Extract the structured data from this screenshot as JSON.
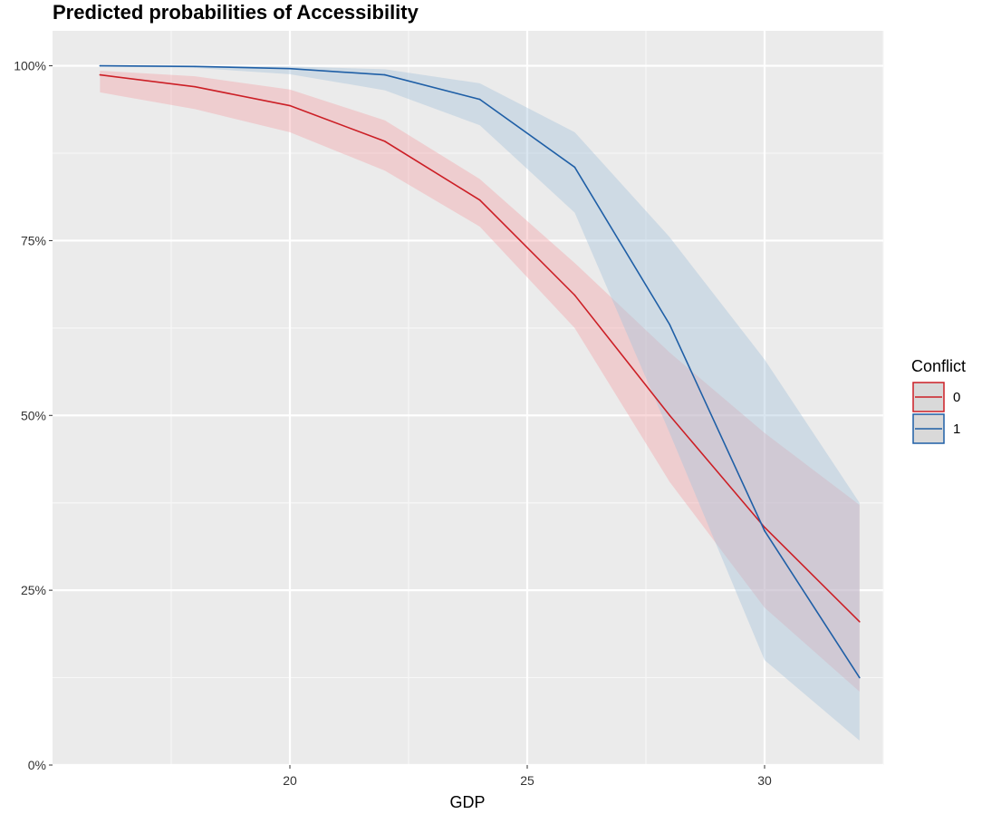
{
  "chart_data": {
    "type": "line",
    "title": "Predicted probabilities of Accessibility",
    "xlabel": "GDP",
    "ylabel": "",
    "xlim": [
      15,
      32.5
    ],
    "ylim": [
      0,
      1.05
    ],
    "x_ticks": [
      20,
      25,
      30
    ],
    "x_tick_labels": [
      "20",
      "25",
      "30"
    ],
    "y_ticks": [
      0,
      0.25,
      0.5,
      0.75,
      1.0
    ],
    "y_tick_labels": [
      "0%",
      "25%",
      "50%",
      "75%",
      "100%"
    ],
    "grid": true,
    "legend": {
      "title": "Conflict",
      "position": "right"
    },
    "series": [
      {
        "name": "0",
        "color": "#cc1f26",
        "band_color": "#f4a5a9",
        "x": [
          16,
          18,
          20,
          22,
          24,
          26,
          28,
          30,
          32
        ],
        "y": [
          0.987,
          0.97,
          0.943,
          0.892,
          0.808,
          0.672,
          0.5,
          0.34,
          0.205
        ],
        "lower": [
          0.962,
          0.938,
          0.905,
          0.85,
          0.77,
          0.625,
          0.405,
          0.225,
          0.105
        ],
        "upper": [
          0.993,
          0.985,
          0.966,
          0.922,
          0.838,
          0.718,
          0.59,
          0.475,
          0.372
        ]
      },
      {
        "name": "1",
        "color": "#1f5fa6",
        "band_color": "#a8c3dc",
        "x": [
          16,
          18,
          20,
          22,
          24,
          26,
          28,
          30,
          32
        ],
        "y": [
          1.0,
          0.999,
          0.996,
          0.987,
          0.952,
          0.855,
          0.63,
          0.335,
          0.125
        ],
        "lower": [
          0.999,
          0.997,
          0.988,
          0.965,
          0.915,
          0.79,
          0.475,
          0.15,
          0.035
        ],
        "upper": [
          1.0,
          1.0,
          0.999,
          0.995,
          0.975,
          0.905,
          0.755,
          0.58,
          0.375
        ]
      }
    ]
  }
}
